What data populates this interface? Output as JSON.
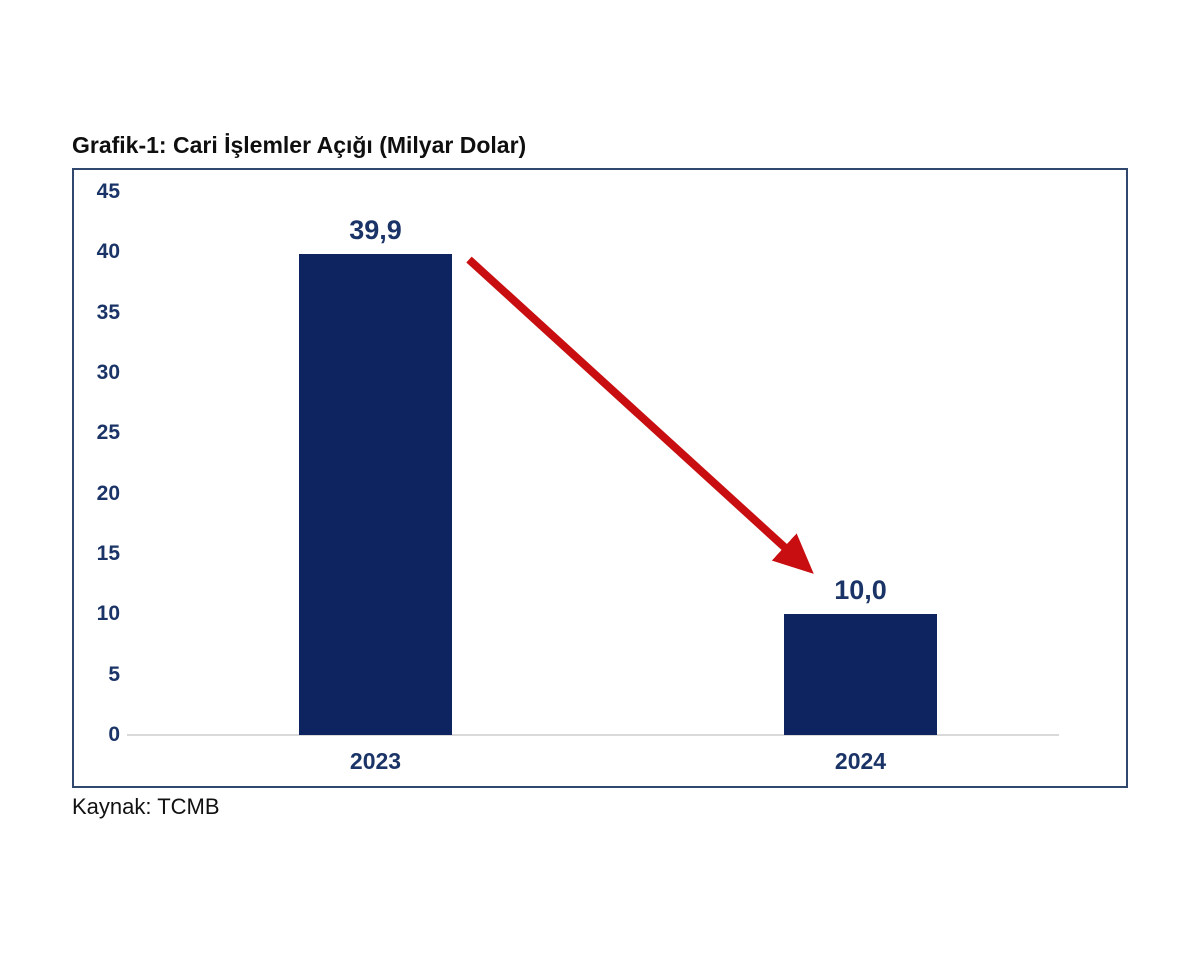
{
  "chart_data": {
    "type": "bar",
    "title": "Grafik-1: Cari İşlemler Açığı (Milyar Dolar)",
    "source": "Kaynak: TCMB",
    "categories": [
      "2023",
      "2024"
    ],
    "values": [
      39.9,
      10.0
    ],
    "value_labels": [
      "39,9",
      "10,0"
    ],
    "xlabel": "",
    "ylabel": "",
    "ylim": [
      0,
      45
    ],
    "yticks": [
      0,
      5,
      10,
      15,
      20,
      25,
      30,
      35,
      40,
      45
    ],
    "grid": false,
    "legend": "none",
    "annotation": {
      "type": "arrow",
      "from_category": "2023",
      "to_category": "2024",
      "meaning": "decline from 39,9 to 10,0"
    },
    "colors": {
      "bar": "#0e2461",
      "label_text": "#1b3467",
      "frame_border": "#31486e",
      "axis_line": "#d9d9d9",
      "arrow": "#c80e10",
      "title_text": "#0f0f0f",
      "source_text": "#111111"
    }
  }
}
